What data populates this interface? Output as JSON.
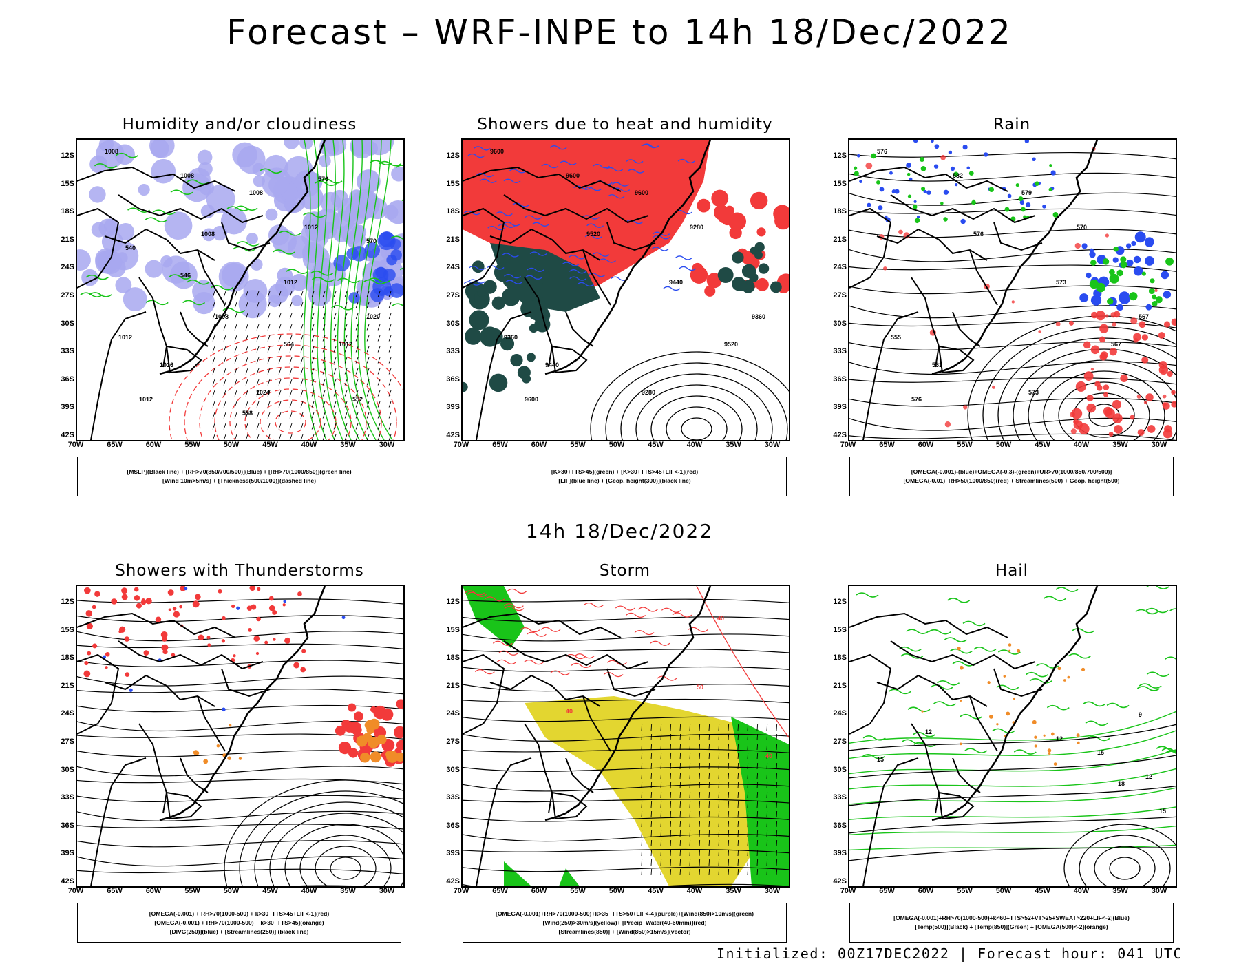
{
  "header": {
    "title": "Forecast – WRF-INPE to 14h 18/Dec/2022",
    "mid_title": "14h 18/Dec/2022"
  },
  "footer": {
    "text": "Initialized: 00Z17DEC2022 | Forecast hour: 041 UTC"
  },
  "axes": {
    "lat_labels": [
      "12S",
      "15S",
      "18S",
      "21S",
      "24S",
      "27S",
      "30S",
      "33S",
      "36S",
      "39S",
      "42S"
    ],
    "lon_labels": [
      "70W",
      "65W",
      "60W",
      "55W",
      "50W",
      "45W",
      "40W",
      "35W",
      "30W"
    ]
  },
  "panels": [
    {
      "title": "Humidity and/or cloudiness",
      "legend": [
        "[MSLP](Black line) + [RH>70(850/700/500)](Blue) + [RH>70(1000/850)](green line)",
        "[Wind 10m>5m/s] + [Thickness(500/1000)](dashed line)"
      ]
    },
    {
      "title": "Showers due to heat and humidity",
      "legend": [
        "[K>30+TTS>45](green) + [K>30+TTS>45+LIF<-1](red)",
        "[LIF](blue line) + [Geop. height(300)](black line)"
      ]
    },
    {
      "title": "Rain",
      "legend": [
        "[OMEGA(-0.001)-(blue)+OMEGA(-0.3)-(green)+UR>70(1000/850/700/500)]",
        "[OMEGA(-0.01)_RH>50(1000/850)(red) + Streamlines(500) + Geop. height(500)"
      ]
    },
    {
      "title": "Showers with Thunderstorms",
      "legend": [
        "[OMEGA(-0.001) + RH>70(1000-500) + k>30_TTS>45+LIF<-1](red)",
        "[OMEGA(-0.001) + RH>70(1000-500) + k>30_TTS>45](orange)",
        "[DIVG(250)](blue) + [Streamlines(250)] (black line)"
      ]
    },
    {
      "title": "Storm",
      "legend": [
        "[OMEGA(-0.001)+RH>70(1000-500)+k>35_TTS>50+LIF<-4](purple)+[Wind(850)>10m/s](green)",
        "[Wind(250)>30m/s](yellow)+ [Precip_Water(40-60mm)](red)",
        "[Streamlines(850)] + [Wind(850)>15m/s](vector)"
      ]
    },
    {
      "title": "Hail",
      "legend": [
        "[OMEGA(-0.001)+RH>70(1000-500)+k<60+TTS>52+VT>25+SWEAT>220+LIF<-2](Blue)",
        "[Temp(500)](Black) + [Temp(850)](Green) + [OMEGA(500)<-2](orange)"
      ]
    }
  ],
  "contour_labels": {
    "p1": [
      "1008",
      "1008",
      "1008",
      "1008",
      "1012",
      "1012",
      "1016",
      "1012",
      "1012",
      "1020",
      "1024",
      "1012",
      "1008",
      "576",
      "570",
      "564",
      "558",
      "552",
      "546",
      "540"
    ],
    "p2": [
      "9600",
      "9600",
      "9600",
      "9520",
      "9440",
      "9520",
      "9440",
      "9360",
      "9280",
      "9360",
      "9280",
      "9600"
    ],
    "p3": [
      "576",
      "582",
      "579",
      "576",
      "573",
      "567",
      "561",
      "555",
      "570",
      "567",
      "573",
      "576"
    ],
    "p5": [
      "40",
      "50",
      "40",
      "40"
    ],
    "p6": [
      "12",
      "12",
      "15",
      "15",
      "18",
      "15",
      "12",
      "9"
    ]
  },
  "colors": {
    "red": "#f23a3a",
    "green": "#19c419",
    "blue": "#2a4cf0",
    "lightblue": "#a8a8f0",
    "darkteal": "#1f4a45",
    "yellow": "#e3d630",
    "orange": "#f08c28"
  }
}
